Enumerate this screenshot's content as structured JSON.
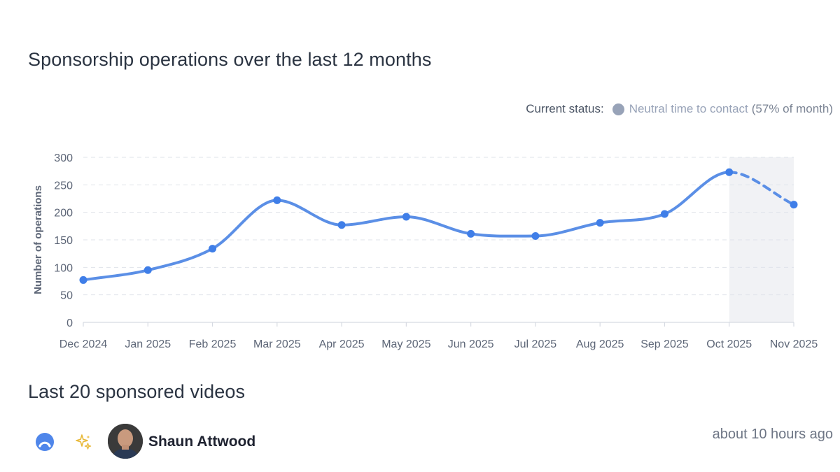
{
  "chart_section": {
    "title": "Sponsorship operations over the last 12 months"
  },
  "status": {
    "label": "Current status:",
    "value": "Neutral time to contact",
    "extra": "(57% of month)",
    "dot_color": "#98a3b8"
  },
  "chart_data": {
    "type": "line",
    "categories": [
      "Dec 2024",
      "Jan 2025",
      "Feb 2025",
      "Mar 2025",
      "Apr 2025",
      "May 2025",
      "Jun 2025",
      "Jul 2025",
      "Aug 2025",
      "Sep 2025",
      "Oct 2025",
      "Nov 2025"
    ],
    "values": [
      77,
      95,
      134,
      222,
      177,
      192,
      161,
      157,
      181,
      197,
      273,
      214
    ],
    "ylabel": "Number of operations",
    "xlabel": "",
    "ylim": [
      0,
      300
    ],
    "yticks": [
      0,
      50,
      100,
      150,
      200,
      250,
      300
    ],
    "grid": true,
    "projected_from_category": "Oct 2025",
    "projected_segment": "dashed",
    "highlighted_period": [
      "Oct 2025",
      "Nov 2025"
    ],
    "line_color": "#5b8fe6",
    "highlight_color": "#f1f2f5"
  },
  "videos_section": {
    "title": "Last 20 sponsored videos",
    "items": [
      {
        "platform_icon": "platform-logo-icon",
        "sparkle_icon": "sparkle-icon",
        "channel_name": "Shaun Attwood",
        "time": "about 10 hours ago"
      }
    ]
  }
}
